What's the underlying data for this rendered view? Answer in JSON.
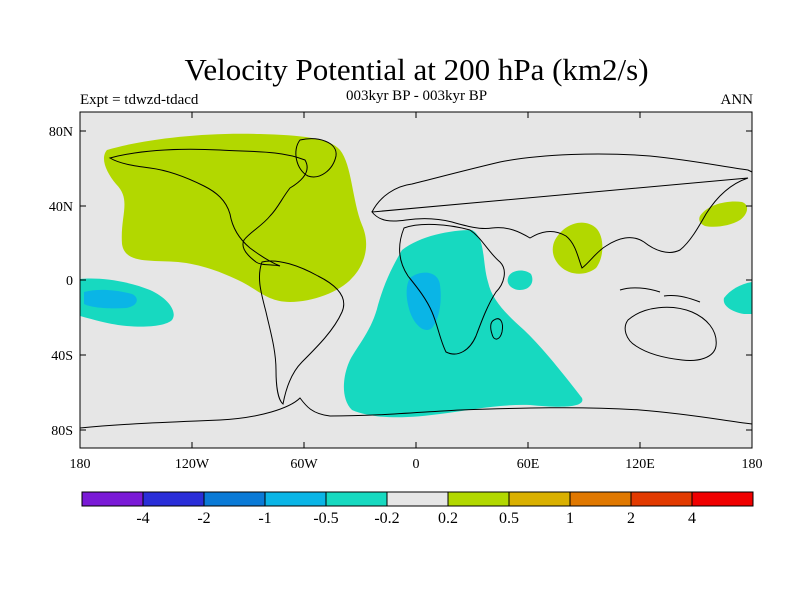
{
  "header": {
    "title": "Velocity Potential at 200 hPa (km2/s)",
    "subtitle": "003kyr BP - 003kyr BP",
    "left_label": "Expt = tdwzd-tdacd",
    "right_label": "ANN"
  },
  "axes": {
    "lat_ticks": [
      "80N",
      "40N",
      "0",
      "40S",
      "80S"
    ],
    "lon_ticks": [
      "180",
      "120W",
      "60W",
      "0",
      "60E",
      "120E",
      "180"
    ]
  },
  "colorbar": {
    "labels": [
      "-4",
      "-2",
      "-1",
      "-0.5",
      "-0.2",
      "0.2",
      "0.5",
      "1",
      "2",
      "4"
    ],
    "colors": [
      "#7a1ad6",
      "#2a2ed8",
      "#0a7ad6",
      "#0ab5e6",
      "#17d9c0",
      "#e6e6e6",
      "#b2d800",
      "#d9b000",
      "#e07800",
      "#e23a00",
      "#f00000"
    ]
  },
  "map": {
    "background": "#e6e6e6",
    "positive_color": "#b2d800",
    "negative_light_color": "#17d9c0",
    "negative_dark_color": "#0ab5e6"
  }
}
